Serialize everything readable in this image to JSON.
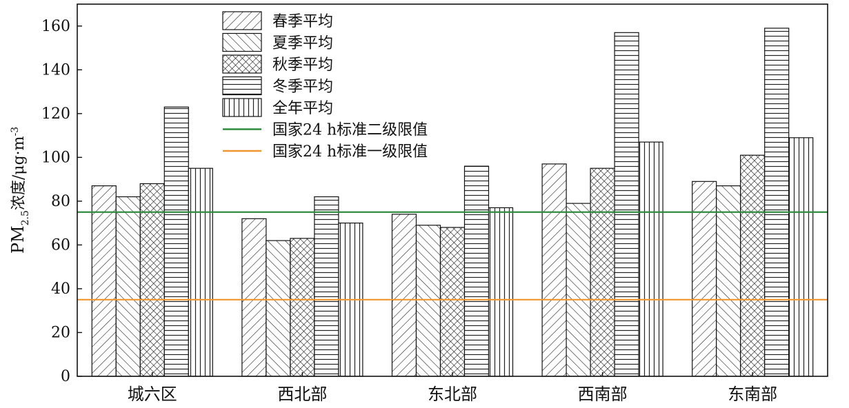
{
  "chart_data": {
    "type": "bar",
    "categories": [
      "城六区",
      "西北部",
      "东北部",
      "西南部",
      "东南部"
    ],
    "series": [
      {
        "name": "春季平均",
        "values": [
          87,
          72,
          74,
          97,
          89
        ],
        "pattern": "diag-forward"
      },
      {
        "name": "夏季平均",
        "values": [
          82,
          62,
          69,
          79,
          87
        ],
        "pattern": "diag-back"
      },
      {
        "name": "秋季平均",
        "values": [
          88,
          63,
          68,
          95,
          101
        ],
        "pattern": "crosshatch"
      },
      {
        "name": "冬季平均",
        "values": [
          123,
          82,
          96,
          157,
          159
        ],
        "pattern": "horizontal"
      },
      {
        "name": "全年平均",
        "values": [
          95,
          70,
          77,
          107,
          109
        ],
        "pattern": "vertical"
      }
    ],
    "reference_lines": [
      {
        "name": "国家24 h标准二级限值",
        "value": 75,
        "color": "#2e8b3e"
      },
      {
        "name": "国家24 h标准一级限值",
        "value": 35,
        "color": "#f0962e"
      }
    ],
    "ylabel": {
      "main": "PM",
      "sub": "2.5",
      "after": "浓度/μg·m",
      "sup": "-3"
    },
    "yticks": [
      0,
      20,
      40,
      60,
      80,
      100,
      120,
      140,
      160
    ],
    "ylim": [
      0,
      170
    ],
    "legend_position": "top-center",
    "grid": false
  }
}
